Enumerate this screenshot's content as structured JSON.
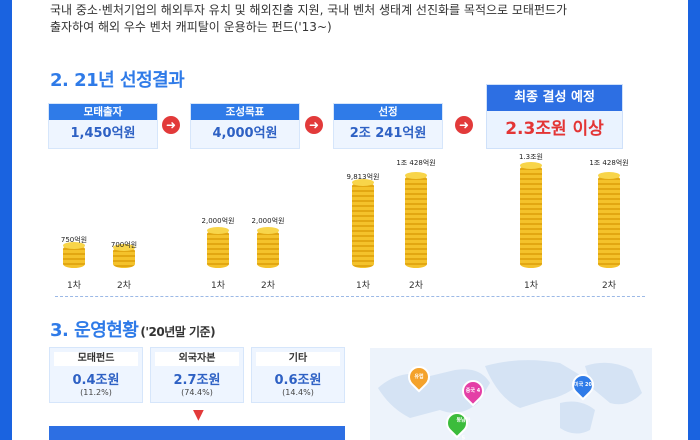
{
  "intro": {
    "line1": "국내 중소·벤처기업의 해외투자 유치 및 해외진출 지원, 국내 벤처 생태계 선진화를 목적으로 모태펀드가",
    "line2": "출자하여 해외 우수 벤처 캐피탈이 운용하는 펀드('13~)"
  },
  "section2": {
    "title": "2. 21년 선정결과",
    "stages": [
      {
        "label": "모태출자",
        "value": "1,450억원"
      },
      {
        "label": "조성목표",
        "value": "4,000억원"
      },
      {
        "label": "선정",
        "value": "2조 241억원"
      }
    ],
    "final": {
      "label": "최종 결성 예정",
      "value": "2.3조원 이상"
    },
    "groups": [
      {
        "bars": [
          {
            "round": "1차",
            "amount": "750억원"
          },
          {
            "round": "2차",
            "amount": "700억원"
          }
        ]
      },
      {
        "bars": [
          {
            "round": "1차",
            "amount": "2,000억원"
          },
          {
            "round": "2차",
            "amount": "2,000억원"
          }
        ]
      },
      {
        "bars": [
          {
            "round": "1차",
            "amount": "9,813억원"
          },
          {
            "round": "2차",
            "amount": "1조 428억원"
          }
        ]
      },
      {
        "bars": [
          {
            "round": "1차",
            "amount": "1.3조원"
          },
          {
            "round": "2차",
            "amount": "1조 428억원"
          }
        ]
      }
    ]
  },
  "section3": {
    "title": "3. 운영현황",
    "note": "('20년말 기준)",
    "boxes": [
      {
        "label": "모태펀드",
        "value": "0.4조원",
        "pct": "(11.2%)"
      },
      {
        "label": "외국자본",
        "value": "2.7조원",
        "pct": "(74.4%)"
      },
      {
        "label": "기타",
        "value": "0.6조원",
        "pct": "(14.4%)"
      }
    ],
    "map_pins": [
      "유럽",
      "중국 4",
      "동남아 5",
      "미국 20"
    ]
  },
  "colors": {
    "accent": "#2f7be8",
    "red": "#e23a3a",
    "coin": "#f4c22b"
  }
}
